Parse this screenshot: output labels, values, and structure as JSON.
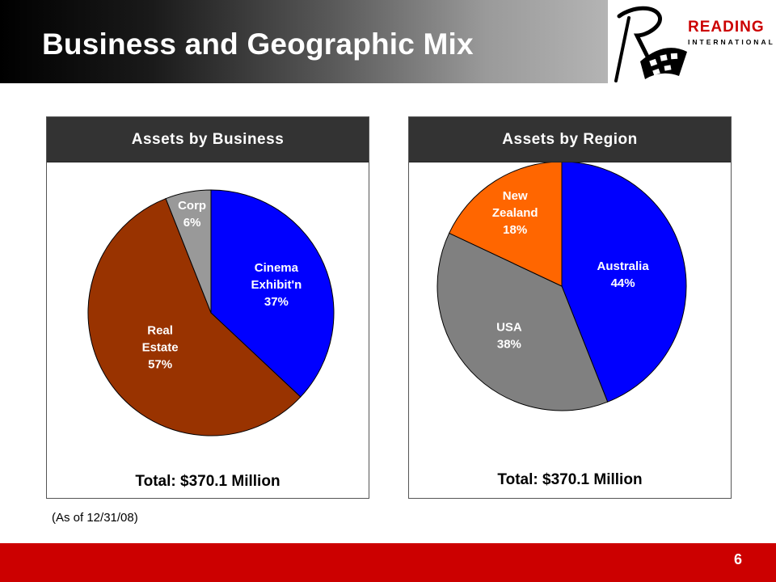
{
  "slide": {
    "title": "Business and Geographic Mix",
    "footnote": "(As of 12/31/08)",
    "page_number": "6"
  },
  "logo": {
    "word": "READING",
    "sub": "INTERNATIONAL"
  },
  "colors": {
    "blue": "#0000ff",
    "brown": "#993300",
    "gray": "#999999",
    "dark_gray": "#808080",
    "orange": "#ff6600",
    "red_accent": "#cc0000"
  },
  "chart_data": [
    {
      "type": "pie",
      "title": "Assets by Business",
      "total": "Total: $370.1 Million",
      "slices": [
        {
          "name": "Cinema Exhibit'n",
          "value": 37,
          "label_lines": [
            "Cinema",
            "Exhibit'n",
            "37%"
          ],
          "color": "#0000ff"
        },
        {
          "name": "Real Estate",
          "value": 57,
          "label_lines": [
            "Real",
            "Estate",
            "57%"
          ],
          "color": "#993300"
        },
        {
          "name": "Corp",
          "value": 6,
          "label_lines": [
            "Corp",
            "6%"
          ],
          "color": "#999999"
        }
      ]
    },
    {
      "type": "pie",
      "title": "Assets by Region",
      "total": "Total: $370.1 Million",
      "slices": [
        {
          "name": "Australia",
          "value": 44,
          "label_lines": [
            "Australia",
            "44%"
          ],
          "color": "#0000ff"
        },
        {
          "name": "USA",
          "value": 38,
          "label_lines": [
            "USA",
            "38%"
          ],
          "color": "#808080"
        },
        {
          "name": "New Zealand",
          "value": 18,
          "label_lines": [
            "New",
            "Zealand",
            "18%"
          ],
          "color": "#ff6600"
        }
      ]
    }
  ]
}
